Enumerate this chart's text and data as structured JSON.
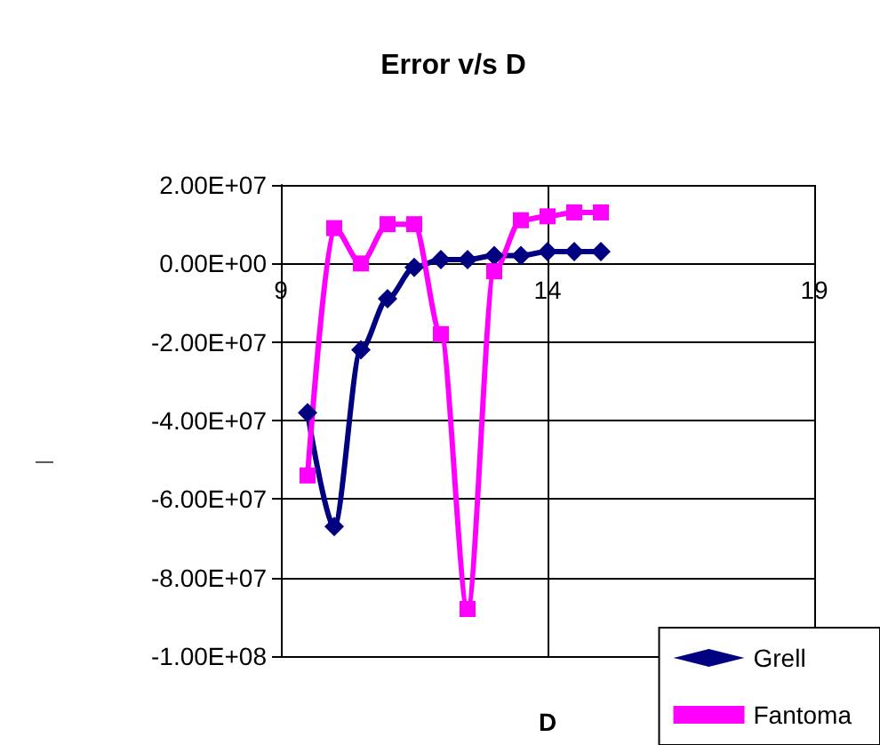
{
  "chart_data": {
    "type": "line",
    "title": "Error v/s D",
    "xlabel": "D",
    "annotations": [
      "—"
    ],
    "x": [
      9.5,
      10,
      10.5,
      11,
      11.5,
      12,
      12.5,
      13,
      13.5,
      14,
      14.5,
      15
    ],
    "series": [
      {
        "name": "Grell",
        "color": "#000080",
        "marker": "diamond",
        "values": [
          -38000000,
          -67000000,
          -22000000,
          -9000000,
          -1000000,
          1000000,
          1000000,
          2000000,
          2000000,
          3000000,
          3000000,
          3000000
        ]
      },
      {
        "name": "Fantoma",
        "color": "#ff00ff",
        "marker": "square",
        "values": [
          -54000000,
          9000000,
          0,
          10000000,
          10000000,
          -18000000,
          -88000000,
          -2000000,
          11000000,
          12000000,
          13000000,
          13000000
        ]
      }
    ],
    "xlim": [
      9,
      19
    ],
    "xticks": [
      9,
      14,
      19
    ],
    "ylim": [
      -100000000,
      20000000
    ],
    "yticks": [
      {
        "value": -100000000,
        "label": "-1.00E+08"
      },
      {
        "value": -80000000,
        "label": "-8.00E+07"
      },
      {
        "value": -60000000,
        "label": "-6.00E+07"
      },
      {
        "value": -40000000,
        "label": "-4.00E+07"
      },
      {
        "value": -20000000,
        "label": "-2.00E+07"
      },
      {
        "value": 0,
        "label": "0.00E+00"
      },
      {
        "value": 20000000,
        "label": "2.00E+07"
      }
    ],
    "grid": true,
    "legend": "bottom right",
    "line_style": "solid"
  }
}
